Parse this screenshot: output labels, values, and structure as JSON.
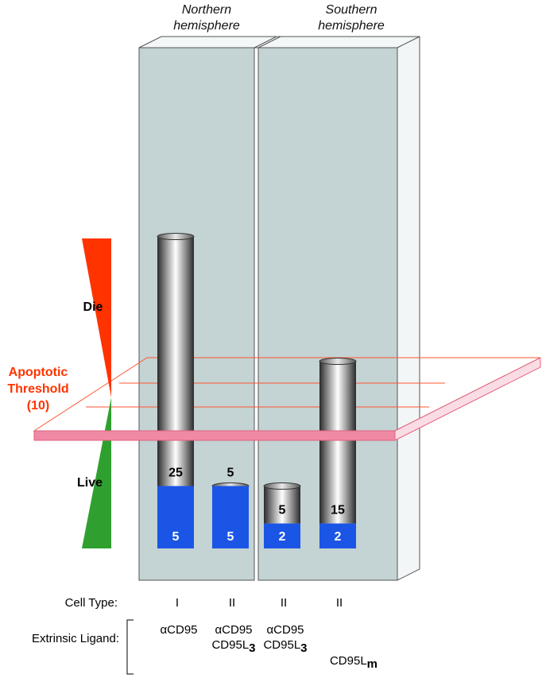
{
  "hemispheres": {
    "northern": [
      "Northern",
      "hemisphere"
    ],
    "southern": [
      "Southern",
      "hemisphere"
    ]
  },
  "labels": {
    "die": "Die",
    "live": "Live",
    "threshold": [
      "Apoptotic",
      "Threshold",
      "(10)"
    ]
  },
  "threshold_value": 10,
  "columns": [
    {
      "cell_type": "I",
      "top": 25,
      "bottom": 5,
      "top_label": "25",
      "bottom_label": "5",
      "ligand": [
        {
          "text": "αCD95",
          "sub": ""
        }
      ]
    },
    {
      "cell_type": "II",
      "top": 5,
      "bottom": 5,
      "top_label": "5",
      "bottom_label": "5",
      "ligand": [
        {
          "text": "αCD95",
          "sub": ""
        },
        {
          "text": "CD95L",
          "sub": "3"
        }
      ]
    },
    {
      "cell_type": "II",
      "top": 5,
      "bottom": 2,
      "top_label": "5",
      "bottom_label": "2",
      "ligand": [
        {
          "text": "αCD95",
          "sub": ""
        },
        {
          "text": "CD95L",
          "sub": "3"
        }
      ]
    },
    {
      "cell_type": "II",
      "top": 15,
      "bottom": 2,
      "top_label": "15",
      "bottom_label": "2",
      "ligand": [
        {
          "text": "CD95L",
          "sub": "m"
        }
      ]
    }
  ],
  "row_labels": {
    "cell_type": "Cell Type:",
    "extrinsic_ligand": "Extrinsic Ligand:"
  },
  "colors": {
    "panel": "#c4d3d3",
    "panel_side": "#f2f5f5",
    "blue": "#1a55e6",
    "die": "#ff3300",
    "live": "#2fa02f",
    "threshold": "#f08aa4"
  }
}
